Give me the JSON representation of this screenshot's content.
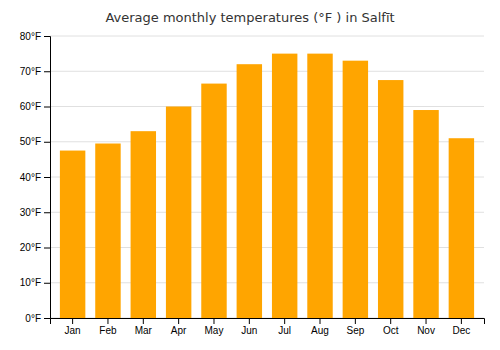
{
  "chart_data": {
    "type": "bar",
    "title": "Average monthly temperatures (°F ) in Salfīt",
    "categories": [
      "Jan",
      "Feb",
      "Mar",
      "Apr",
      "May",
      "Jun",
      "Jul",
      "Aug",
      "Sep",
      "Oct",
      "Nov",
      "Dec"
    ],
    "values": [
      47.5,
      49.5,
      53.0,
      60.0,
      66.5,
      72.0,
      75.0,
      75.0,
      73.0,
      67.5,
      59.0,
      51.0
    ],
    "color": "#FFA500",
    "ylim": [
      0,
      80
    ],
    "yticks": [
      {
        "value": 0,
        "label": "0°F"
      },
      {
        "value": 10,
        "label": "10°F"
      },
      {
        "value": 20,
        "label": "20°F"
      },
      {
        "value": 30,
        "label": "30°F"
      },
      {
        "value": 40,
        "label": "40°F"
      },
      {
        "value": 50,
        "label": "50°F"
      },
      {
        "value": 60,
        "label": "60°F"
      },
      {
        "value": 70,
        "label": "70°F"
      },
      {
        "value": 80,
        "label": "80°F"
      }
    ],
    "grid": true
  }
}
